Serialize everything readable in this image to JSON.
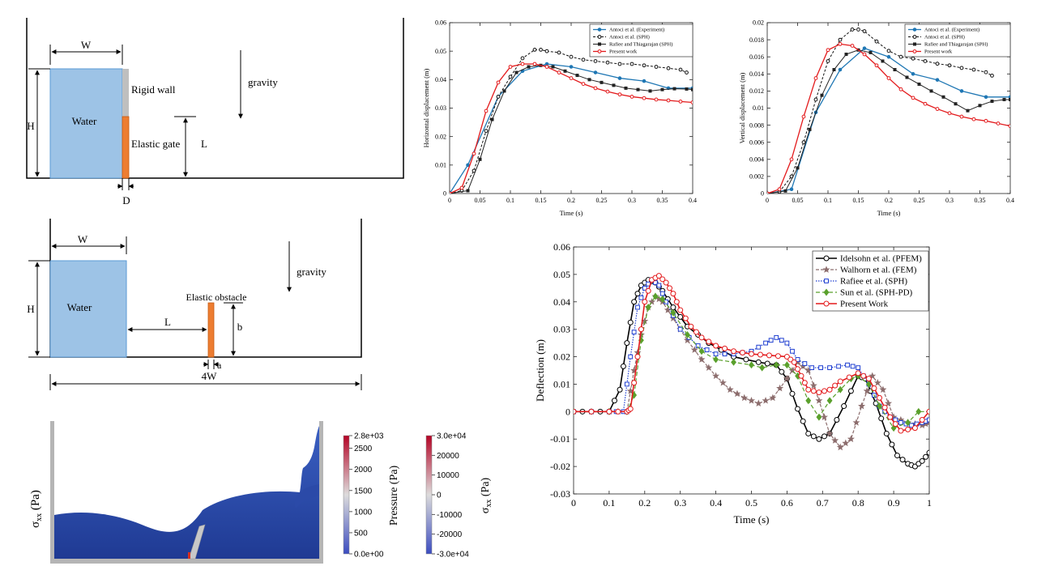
{
  "colors": {
    "water": "#9dc3e6",
    "water_stroke": "#5b9bd5",
    "gate": "#ed7d31",
    "rigid_wall": "#bfbfbf",
    "antoci_exp": "#1f77b4",
    "antoci_sph": "#111111",
    "rafiee_sph_small": "#222222",
    "present_small": "#e31a1c",
    "idelsohn": "#000000",
    "walhorn": "#8c6d6d",
    "rafiee_sph_big": "#1f3fd1",
    "sun": "#5aa02c",
    "present_big": "#e31a1c"
  },
  "diagram1": {
    "W": "W",
    "H": "H",
    "L": "L",
    "D": "D",
    "water": "Water",
    "rigid_wall": "Rigid wall",
    "elastic_gate": "Elastic gate",
    "gravity": "gravity"
  },
  "diagram2": {
    "W": "W",
    "H": "H",
    "L": "L",
    "b": "b",
    "a": "a",
    "fourW": "4W",
    "water": "Water",
    "elastic_obstacle": "Elastic obstacle",
    "gravity": "gravity"
  },
  "sim": {
    "sigma_label": "σ",
    "sigma_sub": "xx",
    "sigma_unit": " (Pa)",
    "pressure_title": "Pressure (Pa)",
    "pressure_ticks": [
      "2.8e+03",
      "2500",
      "2000",
      "1500",
      "1000",
      "500",
      "0.0e+00"
    ],
    "pressure_values": [
      2800,
      2500,
      2000,
      1500,
      1000,
      500,
      0
    ],
    "stress_ticks": [
      "3.0e+04",
      "20000",
      "10000",
      "0",
      "-10000",
      "-20000",
      "-3.0e+04"
    ],
    "stress_values": [
      30000,
      20000,
      10000,
      0,
      -10000,
      -20000,
      -30000
    ]
  },
  "chart_data": [
    {
      "type": "line",
      "xlabel": "Time (s)",
      "ylabel": "Horizontal displacement (m)",
      "xlim": [
        0,
        0.4
      ],
      "ylim": [
        0,
        0.06
      ],
      "xticks": [
        "0",
        "0.05",
        "0.1",
        "0.15",
        "0.2",
        "0.25",
        "0.3",
        "0.35",
        "0.4"
      ],
      "yticks": [
        "0",
        "0.01",
        "0.02",
        "0.03",
        "0.04",
        "0.05",
        "0.06"
      ],
      "legend_position": "top-right",
      "series": [
        {
          "name": "Antoci et al. (Experiment)",
          "x": [
            0,
            0.03,
            0.08,
            0.12,
            0.16,
            0.2,
            0.24,
            0.28,
            0.32,
            0.36,
            0.4
          ],
          "y": [
            0,
            0.01,
            0.034,
            0.043,
            0.0455,
            0.0445,
            0.0425,
            0.0405,
            0.0395,
            0.037,
            0.037
          ]
        },
        {
          "name": "Antoci et al. (SPH)",
          "x": [
            0,
            0.02,
            0.04,
            0.06,
            0.08,
            0.1,
            0.12,
            0.14,
            0.15,
            0.16,
            0.18,
            0.2,
            0.22,
            0.24,
            0.26,
            0.28,
            0.3,
            0.32,
            0.34,
            0.36,
            0.38,
            0.39
          ],
          "y": [
            0,
            0.001,
            0.008,
            0.022,
            0.034,
            0.041,
            0.0475,
            0.0505,
            0.0505,
            0.05,
            0.0495,
            0.048,
            0.047,
            0.0465,
            0.046,
            0.0455,
            0.0455,
            0.045,
            0.0445,
            0.044,
            0.0435,
            0.0425
          ]
        },
        {
          "name": "Rafiee and Thiagarajan (SPH)",
          "x": [
            0,
            0.03,
            0.05,
            0.07,
            0.09,
            0.11,
            0.13,
            0.15,
            0.17,
            0.19,
            0.21,
            0.23,
            0.25,
            0.27,
            0.29,
            0.31,
            0.33,
            0.35,
            0.37,
            0.39,
            0.4
          ],
          "y": [
            0,
            0.001,
            0.012,
            0.026,
            0.036,
            0.0425,
            0.0445,
            0.045,
            0.0445,
            0.043,
            0.0415,
            0.04,
            0.039,
            0.038,
            0.037,
            0.0365,
            0.036,
            0.0365,
            0.0368,
            0.0367,
            0.0365
          ]
        },
        {
          "name": "Present work",
          "x": [
            0,
            0.02,
            0.04,
            0.06,
            0.08,
            0.1,
            0.12,
            0.14,
            0.16,
            0.18,
            0.2,
            0.22,
            0.24,
            0.26,
            0.28,
            0.3,
            0.32,
            0.34,
            0.36,
            0.38,
            0.4
          ],
          "y": [
            0,
            0.002,
            0.014,
            0.029,
            0.039,
            0.0445,
            0.0455,
            0.0455,
            0.0445,
            0.0425,
            0.0405,
            0.0385,
            0.037,
            0.0358,
            0.0348,
            0.034,
            0.0335,
            0.033,
            0.0327,
            0.0323,
            0.032
          ]
        }
      ]
    },
    {
      "type": "line",
      "xlabel": "Time (s)",
      "ylabel": "Vertical displacement (m)",
      "xlim": [
        0,
        0.4
      ],
      "ylim": [
        0,
        0.02
      ],
      "xticks": [
        "0",
        "0.05",
        "0.1",
        "0.15",
        "0.2",
        "0.25",
        "0.3",
        "0.35",
        "0.4"
      ],
      "yticks": [
        "0",
        "0.002",
        "0.004",
        "0.006",
        "0.008",
        "0.01",
        "0.012",
        "0.014",
        "0.016",
        "0.018",
        "0.02"
      ],
      "legend_position": "top-right",
      "series": [
        {
          "name": "Antoci et al. (Experiment)",
          "x": [
            0,
            0.04,
            0.08,
            0.12,
            0.16,
            0.2,
            0.24,
            0.28,
            0.32,
            0.36,
            0.4
          ],
          "y": [
            0,
            0.0005,
            0.0095,
            0.0145,
            0.017,
            0.016,
            0.014,
            0.0133,
            0.012,
            0.0113,
            0.0113
          ]
        },
        {
          "name": "Antoci et al. (SPH)",
          "x": [
            0,
            0.02,
            0.04,
            0.06,
            0.08,
            0.1,
            0.12,
            0.14,
            0.15,
            0.16,
            0.18,
            0.2,
            0.22,
            0.24,
            0.26,
            0.28,
            0.3,
            0.32,
            0.34,
            0.36,
            0.37
          ],
          "y": [
            0,
            0.0002,
            0.002,
            0.006,
            0.011,
            0.0155,
            0.018,
            0.0192,
            0.0192,
            0.019,
            0.0178,
            0.0167,
            0.016,
            0.0158,
            0.0155,
            0.0152,
            0.015,
            0.0147,
            0.0145,
            0.0142,
            0.0138
          ]
        },
        {
          "name": "Rafiee and Thiagarajan (SPH)",
          "x": [
            0,
            0.03,
            0.05,
            0.07,
            0.09,
            0.11,
            0.13,
            0.15,
            0.17,
            0.19,
            0.21,
            0.23,
            0.25,
            0.27,
            0.29,
            0.31,
            0.33,
            0.35,
            0.37,
            0.39,
            0.4
          ],
          "y": [
            0,
            0.0003,
            0.003,
            0.0075,
            0.0115,
            0.0145,
            0.0163,
            0.0168,
            0.0165,
            0.0155,
            0.0145,
            0.0136,
            0.0128,
            0.012,
            0.0113,
            0.0105,
            0.0097,
            0.0103,
            0.0108,
            0.011,
            0.011
          ]
        },
        {
          "name": "Present work",
          "x": [
            0,
            0.02,
            0.04,
            0.06,
            0.08,
            0.1,
            0.12,
            0.14,
            0.16,
            0.18,
            0.2,
            0.22,
            0.24,
            0.26,
            0.28,
            0.3,
            0.32,
            0.34,
            0.36,
            0.38,
            0.4
          ],
          "y": [
            0,
            0.0005,
            0.004,
            0.009,
            0.0135,
            0.0168,
            0.0175,
            0.0173,
            0.0163,
            0.015,
            0.0135,
            0.0122,
            0.0112,
            0.0105,
            0.0099,
            0.0094,
            0.009,
            0.0087,
            0.0085,
            0.0082,
            0.0079
          ]
        }
      ]
    },
    {
      "type": "line",
      "xlabel": "Time (s)",
      "ylabel": "Deflection (m)",
      "xlim": [
        0,
        1
      ],
      "ylim": [
        -0.03,
        0.06
      ],
      "xticks": [
        "0",
        "0.1",
        "0.2",
        "0.3",
        "0.4",
        "0.5",
        "0.6",
        "0.7",
        "0.8",
        "0.9",
        "1"
      ],
      "yticks": [
        "-0.03",
        "-0.02",
        "-0.01",
        "0",
        "0.01",
        "0.02",
        "0.03",
        "0.04",
        "0.05",
        "0.06"
      ],
      "legend_position": "top-right",
      "series": [
        {
          "name": "Idelsohn et al. (PFEM)",
          "x": [
            0,
            0.05,
            0.1,
            0.13,
            0.15,
            0.17,
            0.19,
            0.21,
            0.23,
            0.25,
            0.28,
            0.32,
            0.38,
            0.45,
            0.52,
            0.57,
            0.6,
            0.63,
            0.66,
            0.69,
            0.72,
            0.76,
            0.8,
            0.82,
            0.85,
            0.88,
            0.91,
            0.94,
            0.96,
            0.98,
            1.0
          ],
          "y": [
            0,
            0,
            0,
            0.008,
            0.025,
            0.04,
            0.046,
            0.048,
            0.047,
            0.044,
            0.038,
            0.031,
            0.025,
            0.02,
            0.018,
            0.017,
            0.012,
            0.001,
            -0.008,
            -0.01,
            -0.008,
            0.002,
            0.013,
            0.012,
            0.003,
            -0.008,
            -0.016,
            -0.019,
            -0.02,
            -0.018,
            -0.015
          ]
        },
        {
          "name": "Walhorn et al. (FEM)",
          "x": [
            0,
            0.1,
            0.15,
            0.17,
            0.19,
            0.21,
            0.23,
            0.25,
            0.28,
            0.32,
            0.36,
            0.4,
            0.44,
            0.48,
            0.52,
            0.56,
            0.6,
            0.63,
            0.66,
            0.69,
            0.72,
            0.75,
            0.78,
            0.81,
            0.84,
            0.87,
            0.9,
            0.94,
            0.98,
            1.0
          ],
          "y": [
            0,
            0,
            0,
            0.015,
            0.028,
            0.038,
            0.042,
            0.04,
            0.034,
            0.026,
            0.019,
            0.013,
            0.008,
            0.005,
            0.003,
            0.005,
            0.012,
            0.018,
            0.015,
            0.004,
            -0.008,
            -0.013,
            -0.01,
            0.002,
            0.013,
            0.008,
            -0.002,
            -0.004,
            -0.005,
            -0.004
          ]
        },
        {
          "name": "Rafiee et al. (SPH)",
          "x": [
            0,
            0.1,
            0.14,
            0.16,
            0.18,
            0.2,
            0.22,
            0.24,
            0.26,
            0.3,
            0.35,
            0.4,
            0.45,
            0.5,
            0.54,
            0.57,
            0.6,
            0.63,
            0.67,
            0.72,
            0.77,
            0.8,
            0.83,
            0.86,
            0.89,
            0.92,
            0.95,
            0.98,
            1.0
          ],
          "y": [
            0,
            0,
            0,
            0.02,
            0.038,
            0.045,
            0.048,
            0.046,
            0.04,
            0.03,
            0.024,
            0.021,
            0.021,
            0.022,
            0.025,
            0.027,
            0.025,
            0.019,
            0.016,
            0.016,
            0.017,
            0.016,
            0.01,
            0.002,
            -0.002,
            -0.004,
            -0.005,
            -0.004,
            -0.003
          ]
        },
        {
          "name": "Sun et al. (SPH-PD)",
          "x": [
            0,
            0.1,
            0.15,
            0.17,
            0.19,
            0.21,
            0.23,
            0.25,
            0.28,
            0.32,
            0.36,
            0.4,
            0.45,
            0.5,
            0.53,
            0.57,
            0.6,
            0.63,
            0.66,
            0.69,
            0.72,
            0.75,
            0.78,
            0.8,
            0.83,
            0.86,
            0.9,
            0.94,
            0.97,
            1.0
          ],
          "y": [
            0,
            0,
            0,
            0.006,
            0.026,
            0.038,
            0.042,
            0.041,
            0.036,
            0.028,
            0.022,
            0.019,
            0.018,
            0.017,
            0.016,
            0.017,
            0.017,
            0.013,
            0.004,
            -0.002,
            0.004,
            0.008,
            0.012,
            0.013,
            0.01,
            0.002,
            -0.006,
            -0.004,
            0.0,
            0.0
          ]
        },
        {
          "name": "Present Work",
          "x": [
            0,
            0.1,
            0.15,
            0.16,
            0.18,
            0.2,
            0.22,
            0.24,
            0.26,
            0.28,
            0.3,
            0.33,
            0.36,
            0.4,
            0.45,
            0.5,
            0.55,
            0.6,
            0.62,
            0.64,
            0.66,
            0.69,
            0.72,
            0.75,
            0.8,
            0.83,
            0.86,
            0.89,
            0.92,
            0.96,
            1.0
          ],
          "y": [
            0,
            0,
            0,
            0.001,
            0.02,
            0.04,
            0.048,
            0.0495,
            0.047,
            0.043,
            0.037,
            0.031,
            0.027,
            0.024,
            0.022,
            0.021,
            0.0205,
            0.02,
            0.018,
            0.013,
            0.008,
            0.007,
            0.008,
            0.011,
            0.014,
            0.012,
            0.005,
            -0.002,
            -0.007,
            -0.006,
            0.0
          ]
        }
      ]
    }
  ]
}
